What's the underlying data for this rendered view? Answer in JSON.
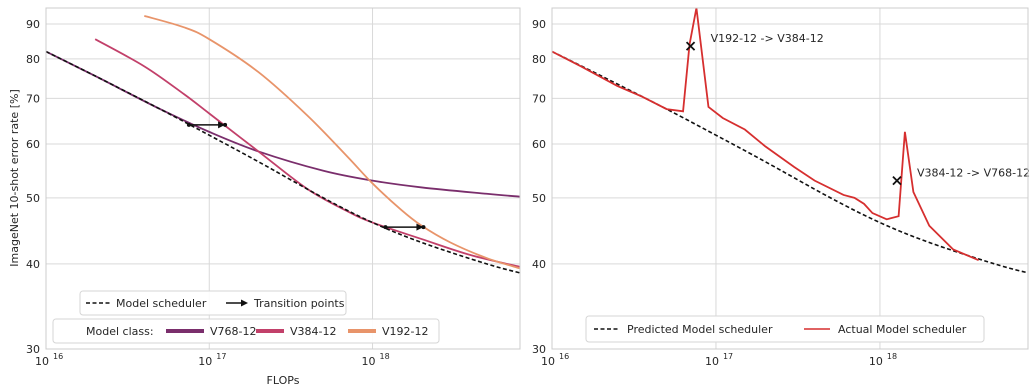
{
  "chart_data": [
    {
      "type": "line",
      "panel": "left",
      "title": "",
      "xlabel": "FLOPs",
      "ylabel": "ImageNet 10-shot error rate [%]",
      "x_scale": "log",
      "y_scale": "log",
      "xlim": [
        1e+16,
        8e+18
      ],
      "ylim": [
        30,
        95
      ],
      "x_ticks": [
        {
          "value": 1e+16,
          "base": "10",
          "exp": "16"
        },
        {
          "value": 1e+17,
          "base": "10",
          "exp": "17"
        },
        {
          "value": 1e+18,
          "base": "10",
          "exp": "18"
        }
      ],
      "y_ticks": [
        30,
        40,
        50,
        60,
        70,
        80,
        90
      ],
      "grid": true,
      "series": [
        {
          "name": "V768-12",
          "color": "#7a2e6c",
          "style": "solid",
          "x": [
            1e+16,
            2e+16,
            5e+16,
            1e+17,
            2e+17,
            5e+17,
            1e+18,
            2e+18,
            5e+18,
            8e+18
          ],
          "y": [
            82,
            75.5,
            67.5,
            62.5,
            58.5,
            54.8,
            53,
            51.8,
            50.7,
            50.2
          ]
        },
        {
          "name": "V384-12",
          "color": "#c2406a",
          "style": "solid",
          "x": [
            2e+16,
            4e+16,
            7e+16,
            1e+17,
            2e+17,
            4e+17,
            7e+17,
            1e+18,
            2e+18,
            4e+18,
            8e+18
          ],
          "y": [
            85.5,
            78,
            71,
            66.5,
            58.5,
            51.5,
            47.8,
            46,
            43.5,
            41.2,
            39.6
          ]
        },
        {
          "name": "V192-12",
          "color": "#e8946a",
          "style": "solid",
          "x": [
            4e+16,
            7e+16,
            1e+17,
            2e+17,
            4e+17,
            7e+17,
            1e+18,
            1.5e+18,
            2e+18,
            3e+18,
            5e+18,
            8e+18
          ],
          "y": [
            92.5,
            89,
            85.5,
            76.5,
            66,
            57.5,
            52.5,
            48,
            45.5,
            43,
            40.8,
            39.4
          ]
        },
        {
          "name": "Model scheduler",
          "color": "#111111",
          "style": "dashed",
          "x": [
            1e+16,
            2e+16,
            5e+16,
            1e+17,
            2e+17,
            5e+17,
            1e+18,
            2e+18,
            5e+18,
            8e+18
          ],
          "y": [
            82,
            75.5,
            67.5,
            61.8,
            56.5,
            50,
            46,
            43,
            40,
            38.8
          ]
        }
      ],
      "transitions": [
        {
          "from_x": 7.5e+16,
          "to_x": 1.25e+17,
          "y": 64
        },
        {
          "from_x": 1.2e+18,
          "to_x": 2.05e+18,
          "y": 45.3
        }
      ],
      "legend_top": {
        "items": [
          "Model scheduler",
          "Transition points"
        ]
      },
      "legend_bottom": {
        "title": "Model class:",
        "items": [
          "V768-12",
          "V384-12",
          "V192-12"
        ]
      }
    },
    {
      "type": "line",
      "panel": "right",
      "title": "",
      "xlabel": "",
      "ylabel": "",
      "x_scale": "log",
      "y_scale": "log",
      "xlim": [
        1e+16,
        8e+18
      ],
      "ylim": [
        30,
        95
      ],
      "x_ticks": [
        {
          "value": 1e+16,
          "base": "10",
          "exp": "16"
        },
        {
          "value": 1e+17,
          "base": "10",
          "exp": "17"
        },
        {
          "value": 1e+18,
          "base": "10",
          "exp": "18"
        }
      ],
      "y_ticks": [
        30,
        40,
        50,
        60,
        70,
        80,
        90
      ],
      "grid": true,
      "series": [
        {
          "name": "Predicted Model scheduler",
          "color": "#111111",
          "style": "dashed",
          "x": [
            1e+16,
            2e+16,
            5e+16,
            1e+17,
            2e+17,
            5e+17,
            1e+18,
            2e+18,
            5e+18,
            8e+18
          ],
          "y": [
            82,
            75.5,
            67.5,
            61.8,
            56.5,
            50,
            46,
            43,
            40,
            38.8
          ]
        },
        {
          "name": "Actual Model scheduler",
          "color": "#d62f2f",
          "style": "solid",
          "x": [
            1e+16,
            1.5e+16,
            2.5e+16,
            3.5e+16,
            5e+16,
            6.3e+16,
            6.9e+16,
            7.6e+16,
            9e+16,
            1.1e+17,
            1.5e+17,
            2e+17,
            3e+17,
            4e+17,
            6e+17,
            7e+17,
            8e+17,
            9e+17,
            1.1e+18,
            1.3e+18,
            1.42e+18,
            1.6e+18,
            2e+18,
            2.8e+18,
            4e+18
          ],
          "y": [
            82,
            78,
            73,
            70.5,
            67.5,
            67,
            84,
            95,
            68,
            65.5,
            63,
            59.5,
            55.5,
            53,
            50.5,
            50,
            49,
            47.5,
            46.5,
            47,
            62.5,
            51,
            45.5,
            42,
            40.5
          ]
        }
      ],
      "annotations": [
        {
          "label": "V192-12 -> V384-12",
          "x": 7e+16,
          "y": 83.5
        },
        {
          "label": "V384-12 -> V768-12",
          "x": 1.27e+18,
          "y": 53
        }
      ],
      "legend": {
        "items": [
          "Predicted Model scheduler",
          "Actual Model scheduler"
        ]
      }
    }
  ]
}
